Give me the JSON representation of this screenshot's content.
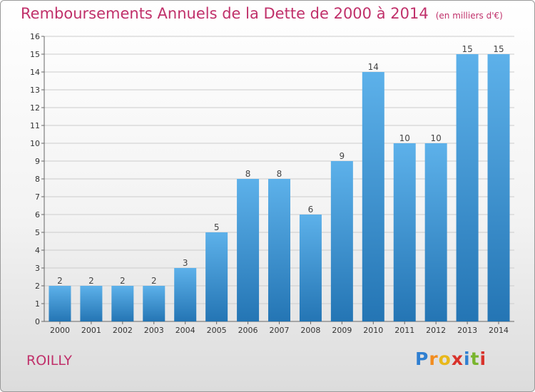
{
  "title": "Remboursements Annuels de la Dette de 2000 à 2014",
  "subtitle": "(en milliers d'€)",
  "commune": "ROILLY",
  "logo": {
    "text": "Proxiti",
    "letters": [
      "P",
      "r",
      "o",
      "x",
      "i",
      "t",
      "i"
    ],
    "colors": [
      "#2f7fd1",
      "#f28c1e",
      "#e8b81a",
      "#d8322b",
      "#2f7fd1",
      "#79b52d",
      "#d8322b"
    ]
  },
  "colors": {
    "title": "#c0306a",
    "bar_top": "#5db1ea",
    "bar_bottom": "#2475b4",
    "grid": "#cccccc",
    "axis": "#666666"
  },
  "chart_data": {
    "type": "bar",
    "title": "Remboursements Annuels de la Dette de 2000 à 2014",
    "subtitle": "(en milliers d'€)",
    "xlabel": "",
    "ylabel": "",
    "categories": [
      "2000",
      "2001",
      "2002",
      "2003",
      "2004",
      "2005",
      "2006",
      "2007",
      "2008",
      "2009",
      "2010",
      "2011",
      "2012",
      "2013",
      "2014"
    ],
    "values": [
      2,
      2,
      2,
      2,
      3,
      5,
      8,
      8,
      6,
      9,
      14,
      10,
      10,
      15,
      15
    ],
    "data_labels": [
      "2",
      "2",
      "2",
      "2",
      "3",
      "5",
      "8",
      "8",
      "6",
      "9",
      "14",
      "10",
      "10",
      "15",
      "15"
    ],
    "yticks": [
      "0",
      "1",
      "2",
      "3",
      "4",
      "5",
      "6",
      "7",
      "8",
      "9",
      "10",
      "11",
      "12",
      "13",
      "14",
      "15",
      "16"
    ],
    "ylim": [
      0,
      16
    ],
    "grid": true,
    "legend": "none"
  }
}
